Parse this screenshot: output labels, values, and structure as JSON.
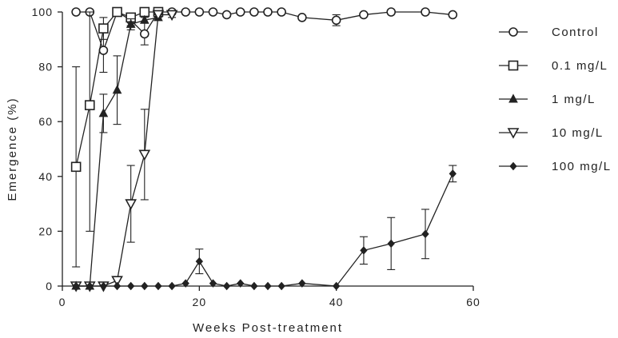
{
  "chart_data": {
    "type": "line",
    "title": "",
    "xlabel": "Weeks Post-treatment",
    "ylabel": "Emergence (%)",
    "xlim": [
      0,
      60
    ],
    "ylim": [
      0,
      100
    ],
    "xticks": [
      0,
      20,
      40,
      60
    ],
    "yticks": [
      0,
      20,
      40,
      60,
      80,
      100
    ],
    "grid": false,
    "legend_position": "right",
    "series": [
      {
        "name": "Control",
        "marker": "open-circle",
        "x": [
          2,
          4,
          6,
          8,
          10,
          12,
          14,
          16,
          18,
          20,
          22,
          24,
          26,
          28,
          30,
          32,
          35,
          40,
          44,
          48,
          53,
          57
        ],
        "y": [
          100,
          100,
          86,
          100,
          97,
          92,
          100,
          100,
          100,
          100,
          100,
          99,
          100,
          100,
          100,
          100,
          98,
          97,
          99,
          100,
          100,
          99
        ],
        "err": [
          0,
          0,
          8,
          0,
          2,
          4,
          0,
          0,
          0,
          0,
          0,
          0,
          0,
          0,
          0,
          0,
          0,
          2,
          0,
          0,
          0,
          0
        ]
      },
      {
        "name": "0.1 mg/L",
        "marker": "open-square",
        "x": [
          2,
          4,
          6,
          8,
          10,
          12,
          14
        ],
        "y": [
          43.5,
          66,
          94,
          100,
          98,
          100,
          100
        ],
        "err": [
          36.5,
          46,
          4,
          0,
          1,
          0,
          0
        ]
      },
      {
        "name": "1 mg/L",
        "marker": "filled-triangle-up",
        "x": [
          2,
          4,
          6,
          8,
          10,
          12,
          14
        ],
        "y": [
          0,
          0,
          63,
          71.5,
          95.5,
          97,
          98
        ],
        "err": [
          0,
          0,
          7,
          12.5,
          2,
          1,
          1
        ]
      },
      {
        "name": "10 mg/L",
        "marker": "open-triangle-down",
        "x": [
          2,
          4,
          6,
          8,
          10,
          12,
          14,
          16
        ],
        "y": [
          0,
          0,
          0,
          2,
          30,
          48,
          99,
          99
        ],
        "err": [
          0,
          0,
          0,
          0,
          14,
          16.5,
          1,
          1
        ]
      },
      {
        "name": "100 mg/L",
        "marker": "filled-diamond",
        "x": [
          2,
          4,
          6,
          8,
          10,
          12,
          14,
          16,
          18,
          20,
          22,
          24,
          26,
          28,
          30,
          32,
          35,
          40,
          44,
          48,
          53,
          57
        ],
        "y": [
          0,
          0,
          0,
          0,
          0,
          0,
          0,
          0,
          1,
          9,
          1,
          0,
          1,
          0,
          0,
          0,
          1,
          0,
          13,
          15.5,
          19,
          41
        ],
        "err": [
          0,
          0,
          0,
          0,
          0,
          0,
          0,
          0,
          0,
          4.5,
          0,
          0,
          0,
          0,
          0,
          0,
          0,
          0,
          5,
          9.5,
          9,
          3
        ]
      }
    ]
  }
}
